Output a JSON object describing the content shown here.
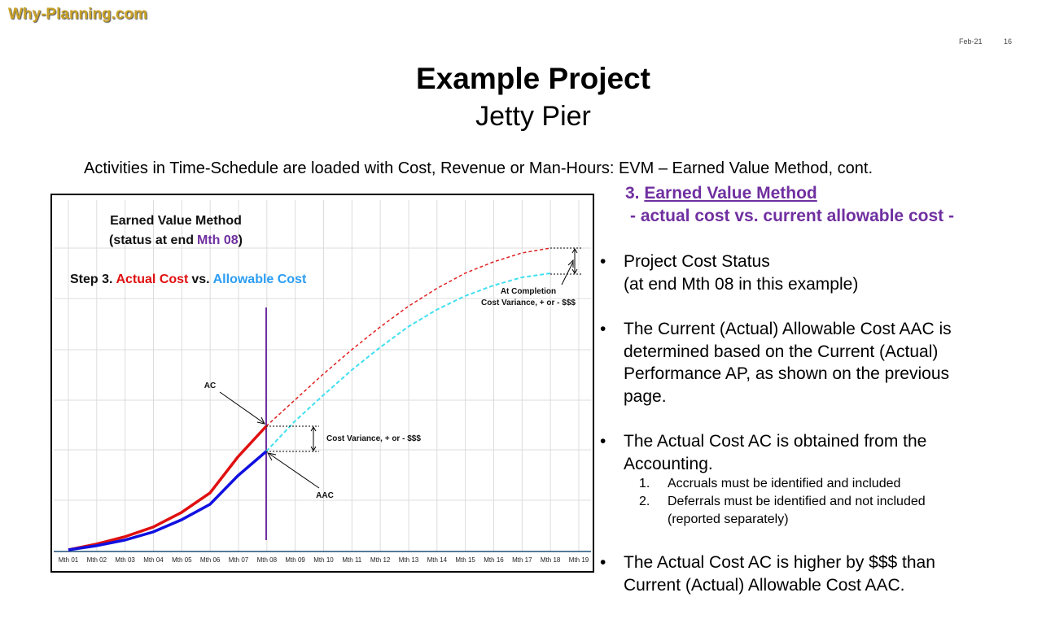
{
  "header": {
    "brand": "Why-Planning.com",
    "date": "Feb-21",
    "page": "16",
    "title": "Example Project",
    "subtitle": "Jetty Pier"
  },
  "intro": "Activities in Time-Schedule are loaded with Cost, Revenue or Man-Hours: EVM – Earned Value Method, cont.",
  "section": {
    "number": "3.",
    "title": "Earned Value Method",
    "subtitle": "- actual cost vs. current allowable cost -"
  },
  "bullets": [
    {
      "lines": [
        "Project Cost Status",
        "(at end Mth 08 in this example)"
      ]
    },
    {
      "lines": [
        "The Current (Actual) Allowable  Cost AAC is",
        "determined based on the Current (Actual)",
        "Performance AP, as shown on the previous",
        "page."
      ]
    },
    {
      "lines": [
        "The Actual Cost AC is obtained from the",
        "Accounting."
      ],
      "subitems": [
        {
          "number": "1.",
          "text": "Accruals must be identified and included"
        },
        {
          "number": "2.",
          "text": "Deferrals must be identified and not included",
          "note": "(reported separately)"
        }
      ]
    },
    {
      "lines": [
        "The Actual Cost AC is higher by $$$ than",
        "Current (Actual) Allowable  Cost AAC."
      ]
    }
  ],
  "figure": {
    "title": "Earned Value Method",
    "status_prefix": "(status at end",
    "status_month": "Mth 08",
    "status_suffix": ")",
    "step": "Step 3.",
    "actual": "Actual Cost",
    "vs": "vs.",
    "allowable": "Allowable Cost",
    "ac_label": "AC",
    "aac_label": "AAC",
    "variance_label": "Cost Variance, + or - $$$",
    "completion_label": "At Completion",
    "completion_variance": "Cost Variance, + or - $$$",
    "categories": [
      "Mth 01",
      "Mth 02",
      "Mth 03",
      "Mth 04",
      "Mth 05",
      "Mth 06",
      "Mth 07",
      "Mth 08",
      "Mth 09",
      "Mth 10",
      "Mth 11",
      "Mth 12",
      "Mth 13",
      "Mth 14",
      "Mth 15",
      "Mth 16",
      "Mth 17",
      "Mth 18",
      "Mth 19"
    ]
  }
}
